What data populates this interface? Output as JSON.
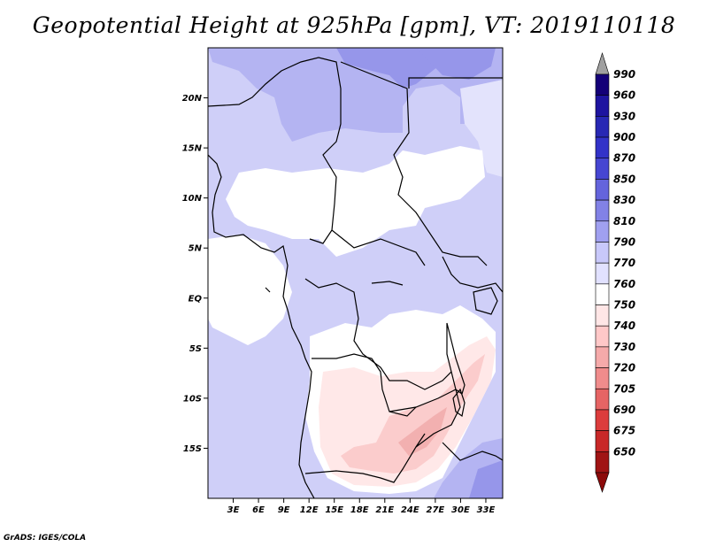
{
  "title": "Geopotential Height at 925hPa [gpm], VT: 2019110118",
  "footer": "GrADS: IGES/COLA",
  "map": {
    "lon_range": [
      0,
      35
    ],
    "lat_range": [
      -20,
      25
    ],
    "lat_ticks": [
      {
        "value": 20,
        "label": "20N"
      },
      {
        "value": 15,
        "label": "15N"
      },
      {
        "value": 10,
        "label": "10N"
      },
      {
        "value": 5,
        "label": "5N"
      },
      {
        "value": 0,
        "label": "EQ"
      },
      {
        "value": -5,
        "label": "5S"
      },
      {
        "value": -10,
        "label": "10S"
      },
      {
        "value": -15,
        "label": "15S"
      }
    ],
    "lon_ticks": [
      {
        "value": 3,
        "label": "3E"
      },
      {
        "value": 6,
        "label": "6E"
      },
      {
        "value": 9,
        "label": "9E"
      },
      {
        "value": 12,
        "label": "12E"
      },
      {
        "value": 15,
        "label": "15E"
      },
      {
        "value": 18,
        "label": "18E"
      },
      {
        "value": 21,
        "label": "21E"
      },
      {
        "value": 24,
        "label": "24E"
      },
      {
        "value": 27,
        "label": "27E"
      },
      {
        "value": 30,
        "label": "30E"
      },
      {
        "value": 33,
        "label": "33E"
      }
    ]
  },
  "colorbar": {
    "levels": [
      {
        "label": "990",
        "color": "#140078"
      },
      {
        "label": "960",
        "color": "#1e14a0"
      },
      {
        "label": "930",
        "color": "#2828b4"
      },
      {
        "label": "900",
        "color": "#3232c8"
      },
      {
        "label": "870",
        "color": "#4646d2"
      },
      {
        "label": "850",
        "color": "#6464dc"
      },
      {
        "label": "830",
        "color": "#8282e6"
      },
      {
        "label": "810",
        "color": "#a0a0f0"
      },
      {
        "label": "790",
        "color": "#c8c8fa"
      },
      {
        "label": "770",
        "color": "#e1e1ff"
      },
      {
        "label": "760",
        "color": "#ffffff"
      },
      {
        "label": "750",
        "color": "#ffe6e6"
      },
      {
        "label": "740",
        "color": "#ffc8c8"
      },
      {
        "label": "730",
        "color": "#f5aaaa"
      },
      {
        "label": "720",
        "color": "#f08c8c"
      },
      {
        "label": "705",
        "color": "#e66464"
      },
      {
        "label": "690",
        "color": "#dc3c3c"
      },
      {
        "label": "675",
        "color": "#c82828"
      },
      {
        "label": "650",
        "color": "#a01414"
      }
    ],
    "top_arrow_color": "#a0a0a0",
    "bottom_arrow_color": "#8c0a0a"
  },
  "colors": {
    "fill_790": "#cfcff8",
    "fill_810": "#b4b4f2",
    "fill_830": "#9696ea",
    "fill_770": "#e3e3fc",
    "fill_760": "#ffffff",
    "fill_750": "#ffe8e8",
    "fill_740": "#fbcccc",
    "fill_730": "#f2b0b0"
  }
}
